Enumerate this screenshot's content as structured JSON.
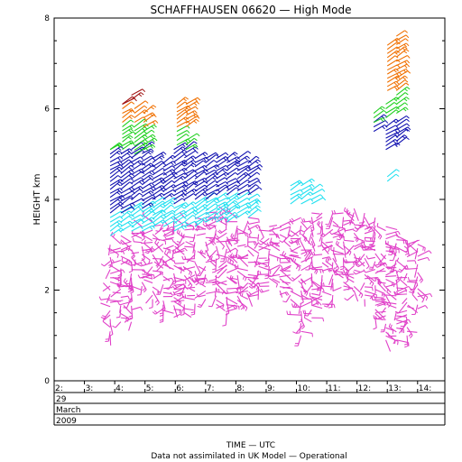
{
  "chart_data": {
    "type": "scatter",
    "title": "SCHAFFHAUSEN 06620 — High Mode",
    "ylabel": "HEIGHT km",
    "xlabel": "TIME — UTC",
    "footnote": "Data not assimilated in UK Model — Operational",
    "ylim": [
      0,
      8
    ],
    "xlim": [
      2,
      14.9
    ],
    "yticks": [
      "0",
      "2",
      "4",
      "6",
      "8"
    ],
    "xticks": [
      "2:",
      "3:",
      "4:",
      "5:",
      "6:",
      "7:",
      "8:",
      "9:",
      "10:",
      "11:",
      "12:",
      "13:",
      "14:"
    ],
    "date_rows": [
      "29",
      "March",
      "2009"
    ],
    "colors": {
      "magenta": "#e040c8",
      "cyan": "#20e0f0",
      "navy": "#1010b0",
      "green": "#20d020",
      "orange": "#f07000",
      "darkred": "#a01010"
    },
    "series": [
      {
        "color": "magenta",
        "x": [
          3.85,
          4.2,
          4.55,
          4.9,
          5.25,
          5.6,
          5.95,
          6.3,
          6.65,
          7.0,
          7.35,
          7.7,
          8.05,
          8.4,
          8.75,
          9.1,
          9.45,
          9.8,
          10.15,
          10.5,
          10.85,
          11.2,
          11.55,
          11.9,
          12.25,
          12.6,
          12.95,
          13.3,
          13.65,
          14.0
        ],
        "y_top": [
          3.0,
          3.2,
          3.25,
          3.4,
          3.5,
          3.55,
          3.6,
          3.6,
          3.6,
          3.7,
          3.7,
          3.7,
          3.6,
          3.6,
          3.5,
          3.4,
          3.4,
          3.4,
          3.6,
          3.7,
          3.7,
          3.7,
          3.7,
          3.8,
          3.7,
          3.6,
          3.4,
          3.2,
          3.1,
          3.1
        ],
        "y_bottom": [
          1.0,
          1.3,
          1.3,
          2.0,
          1.8,
          1.5,
          1.4,
          1.5,
          1.7,
          1.8,
          1.6,
          1.5,
          1.6,
          1.8,
          1.9,
          2.0,
          1.9,
          1.8,
          1.0,
          1.3,
          1.6,
          1.8,
          2.0,
          1.9,
          1.8,
          1.4,
          0.9,
          0.9,
          1.0,
          1.5
        ]
      },
      {
        "color": "cyan",
        "x": [
          3.85,
          4.2,
          4.55,
          4.9,
          5.25,
          5.6,
          5.95,
          6.3,
          6.65,
          7.0,
          7.35,
          7.7,
          8.05,
          8.4,
          9.8,
          10.15,
          10.5,
          13.0
        ],
        "y_top": [
          3.6,
          3.7,
          3.8,
          3.8,
          3.9,
          3.9,
          3.8,
          3.8,
          3.9,
          4.0,
          4.0,
          4.0,
          4.0,
          4.0,
          4.3,
          4.3,
          4.2,
          4.5
        ],
        "y_bottom": [
          3.2,
          3.3,
          3.3,
          3.3,
          3.4,
          3.4,
          3.3,
          3.4,
          3.4,
          3.5,
          3.5,
          3.5,
          3.6,
          3.6,
          3.9,
          3.9,
          3.9,
          4.4
        ]
      },
      {
        "color": "navy",
        "x": [
          3.85,
          4.2,
          4.55,
          4.9,
          5.25,
          5.6,
          5.95,
          6.3,
          6.65,
          7.0,
          7.35,
          7.7,
          8.05,
          8.4,
          12.55,
          12.95,
          13.3
        ],
        "y_top": [
          5.0,
          5.0,
          5.1,
          5.1,
          4.9,
          4.8,
          5.1,
          5.1,
          4.9,
          4.9,
          4.9,
          4.9,
          4.9,
          4.8,
          5.7,
          5.6,
          5.7
        ],
        "y_bottom": [
          3.7,
          3.7,
          3.9,
          3.8,
          4.0,
          4.0,
          3.9,
          4.0,
          4.0,
          4.0,
          4.1,
          4.1,
          4.1,
          4.1,
          5.5,
          5.1,
          5.2
        ]
      },
      {
        "color": "green",
        "x": [
          3.85,
          4.25,
          4.65,
          4.95,
          6.05,
          6.35,
          12.55,
          12.95,
          13.3
        ],
        "y_top": [
          5.1,
          5.6,
          5.6,
          5.5,
          5.5,
          5.3,
          5.9,
          6.1,
          6.3
        ],
        "y_bottom": [
          5.1,
          5.1,
          5.0,
          5.1,
          5.2,
          5.1,
          5.7,
          5.8,
          5.9
        ]
      },
      {
        "color": "orange",
        "x": [
          4.25,
          4.65,
          4.95,
          6.05,
          6.35,
          13.0,
          13.3
        ],
        "y_top": [
          6.0,
          6.0,
          5.9,
          6.1,
          6.1,
          7.4,
          7.6
        ],
        "y_bottom": [
          5.7,
          5.7,
          5.6,
          5.6,
          5.6,
          6.4,
          6.4
        ]
      },
      {
        "color": "darkred",
        "x": [
          4.25,
          4.55
        ],
        "y_top": [
          6.1,
          6.3
        ],
        "y_bottom": [
          6.1,
          6.2
        ]
      }
    ]
  }
}
